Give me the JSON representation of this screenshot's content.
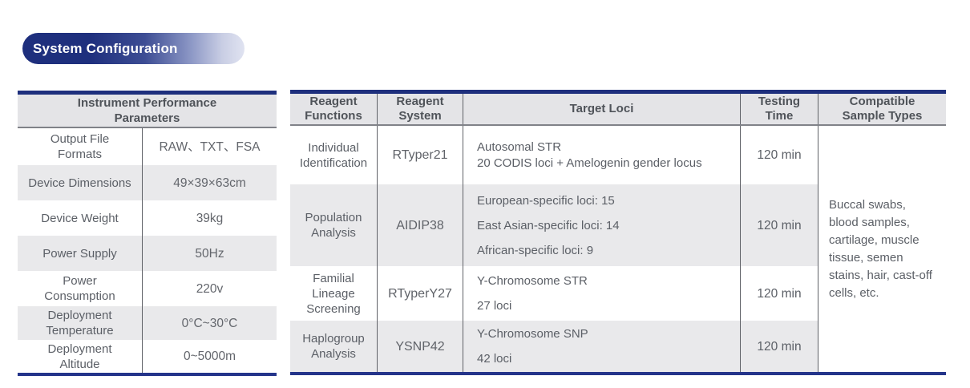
{
  "page": {
    "title": "System Configuration"
  },
  "colors": {
    "accent_navy": "#1e2f7d",
    "row_alt_gray": "#e9e9eb",
    "header_gray": "#e4e4e7",
    "text_gray": "#5b5f66"
  },
  "left_table": {
    "header": "Instrument Performance Parameters",
    "rows": [
      {
        "label": [
          "Output File",
          "Formats"
        ],
        "value": "RAW、TXT、FSA"
      },
      {
        "label": [
          "Device Dimensions"
        ],
        "value": "49×39×63cm"
      },
      {
        "label": [
          "Device Weight"
        ],
        "value": "39kg"
      },
      {
        "label": [
          "Power Supply"
        ],
        "value": "50Hz"
      },
      {
        "label": [
          "Power",
          "Consumption"
        ],
        "value": "220v"
      },
      {
        "label": [
          "Deployment",
          "Temperature"
        ],
        "value": "0°C~30°C"
      },
      {
        "label": [
          "Deployment",
          "Altitude"
        ],
        "value": "0~5000m"
      }
    ]
  },
  "right_table": {
    "headers": {
      "reagent_functions": "Reagent Functions",
      "reagent_system": "Reagent System",
      "target_loci": "Target Loci",
      "testing_time": "Testing Time",
      "compatible_sample_types": "Compatible Sample Types"
    },
    "rows": [
      {
        "function": "Individual Identification",
        "system": "RTyper21",
        "target_loci": [
          "Autosomal STR",
          "20 CODIS loci + Amelogenin gender locus"
        ],
        "testing_time": "120 min"
      },
      {
        "function": "Population Analysis",
        "system": "AIDIP38",
        "target_loci": [
          "European-specific loci: 15",
          "East Asian-specific loci: 14",
          "African-specific loci: 9"
        ],
        "testing_time": "120 min"
      },
      {
        "function": "Familial Lineage Screening",
        "system": "RTyperY27",
        "target_loci": [
          "Y-Chromosome STR",
          "27 loci"
        ],
        "testing_time": "120 min"
      },
      {
        "function": "Haplogroup Analysis",
        "system": "YSNP42",
        "target_loci": [
          "Y-Chromosome SNP",
          "42 loci"
        ],
        "testing_time": "120 min"
      }
    ],
    "compatible_sample_types": "Buccal swabs, blood samples, cartilage, muscle tissue, semen stains, hair, cast-off cells, etc."
  }
}
